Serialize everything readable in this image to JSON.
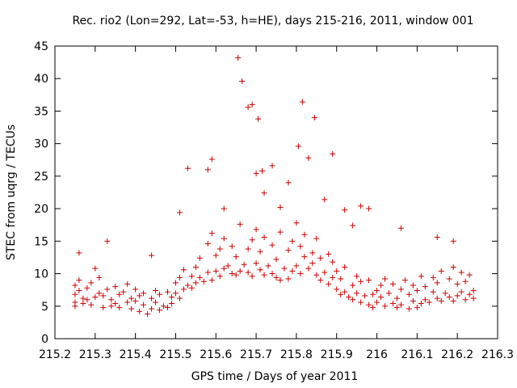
{
  "chart_data": {
    "type": "scatter",
    "title": "Rec. rio2 (Lon=292, Lat=-53, h=HE), days 215-216, 2011, window 001",
    "xlabel": "GPS time / Days of year 2011",
    "ylabel": "STEC from uqrg / TECUs",
    "xlim": [
      215.2,
      216.3
    ],
    "ylim": [
      0,
      45
    ],
    "xticks": [
      215.2,
      215.3,
      215.4,
      215.5,
      215.6,
      215.7,
      215.8,
      215.9,
      216.0,
      216.1,
      216.2,
      216.3
    ],
    "xtick_labels": [
      "215.2",
      "215.3",
      "215.4",
      "215.5",
      "215.6",
      "215.7",
      "215.8",
      "215.9",
      "216",
      "216.1",
      "216.2",
      "216.3"
    ],
    "yticks": [
      0,
      5,
      10,
      15,
      20,
      25,
      30,
      35,
      40,
      45
    ],
    "ytick_labels": [
      "0",
      "5",
      "10",
      "15",
      "20",
      "25",
      "30",
      "35",
      "40",
      "45"
    ],
    "grid": false,
    "marker": "+",
    "color": "#cc0000",
    "x": [
      215.25,
      215.25,
      215.25,
      215.25,
      215.26,
      215.26,
      215.27,
      215.27,
      215.28,
      215.28,
      215.29,
      215.29,
      215.3,
      215.3,
      215.31,
      215.31,
      215.32,
      215.32,
      215.33,
      215.34,
      215.34,
      215.35,
      215.35,
      215.36,
      215.36,
      215.37,
      215.38,
      215.38,
      215.39,
      215.39,
      215.4,
      215.4,
      215.41,
      215.41,
      215.42,
      215.42,
      215.43,
      215.44,
      215.44,
      215.45,
      215.45,
      215.46,
      215.46,
      215.47,
      215.48,
      215.48,
      215.49,
      215.49,
      215.5,
      215.5,
      215.51,
      215.51,
      215.52,
      215.52,
      215.53,
      215.54,
      215.54,
      215.55,
      215.55,
      215.56,
      215.56,
      215.57,
      215.58,
      215.58,
      215.59,
      215.59,
      215.6,
      215.6,
      215.61,
      215.61,
      215.62,
      215.62,
      215.63,
      215.64,
      215.64,
      215.65,
      215.65,
      215.66,
      215.66,
      215.67,
      215.68,
      215.68,
      215.69,
      215.69,
      215.7,
      215.7,
      215.71,
      215.71,
      215.72,
      215.72,
      215.73,
      215.74,
      215.74,
      215.75,
      215.75,
      215.76,
      215.76,
      215.77,
      215.78,
      215.78,
      215.79,
      215.79,
      215.8,
      215.8,
      215.81,
      215.81,
      215.82,
      215.82,
      215.83,
      215.84,
      215.84,
      215.85,
      215.85,
      215.86,
      215.86,
      215.87,
      215.88,
      215.88,
      215.89,
      215.89,
      215.9,
      215.9,
      215.91,
      215.91,
      215.92,
      215.92,
      215.93,
      215.94,
      215.94,
      215.95,
      215.95,
      215.96,
      215.96,
      215.97,
      215.98,
      215.98,
      215.99,
      215.99,
      216.0,
      216.0,
      216.01,
      216.01,
      216.02,
      216.02,
      216.03,
      216.04,
      216.04,
      216.05,
      216.05,
      216.06,
      216.06,
      216.07,
      216.08,
      216.08,
      216.09,
      216.09,
      216.1,
      216.1,
      216.11,
      216.11,
      216.12,
      216.12,
      216.13,
      216.14,
      216.14,
      216.15,
      216.15,
      216.16,
      216.16,
      216.17,
      216.18,
      216.18,
      216.19,
      216.19,
      216.2,
      216.2,
      216.21,
      216.21,
      216.22,
      216.22,
      216.23,
      216.23,
      216.24,
      216.24,
      215.26,
      215.33,
      215.44,
      215.51,
      215.53,
      215.58,
      215.59,
      215.62,
      215.655,
      215.665,
      215.68,
      215.69,
      215.7,
      215.705,
      215.715,
      215.72,
      215.74,
      215.76,
      215.78,
      215.805,
      215.815,
      215.83,
      215.845,
      215.87,
      215.89,
      215.92,
      215.94,
      215.96,
      215.98,
      216.06,
      216.15,
      216.19
    ],
    "y": [
      8.2,
      6.8,
      5.6,
      5.0,
      7.4,
      9.0,
      6.2,
      5.4,
      7.8,
      6.0,
      5.2,
      8.6,
      10.8,
      6.4,
      7.0,
      9.4,
      4.8,
      6.6,
      7.6,
      6.0,
      5.0,
      8.0,
      5.4,
      6.8,
      4.8,
      7.2,
      5.6,
      8.4,
      4.6,
      6.2,
      5.8,
      7.6,
      4.2,
      6.6,
      5.2,
      7.0,
      3.8,
      6.2,
      4.6,
      5.6,
      7.4,
      4.4,
      6.8,
      5.0,
      7.2,
      4.8,
      6.4,
      5.4,
      7.0,
      8.6,
      6.2,
      9.4,
      7.6,
      10.6,
      8.2,
      9.6,
      7.8,
      11.0,
      8.6,
      9.4,
      12.4,
      8.8,
      10.2,
      14.6,
      9.0,
      16.2,
      10.4,
      12.8,
      9.6,
      13.8,
      10.8,
      15.4,
      11.2,
      10.0,
      14.2,
      9.8,
      12.6,
      10.4,
      17.6,
      11.4,
      10.2,
      13.8,
      9.6,
      15.2,
      11.6,
      16.8,
      10.6,
      13.4,
      9.8,
      15.6,
      11.2,
      10.0,
      14.4,
      9.4,
      12.2,
      9.0,
      16.4,
      10.8,
      9.2,
      13.6,
      10.4,
      15.0,
      11.2,
      17.8,
      10.0,
      14.2,
      12.6,
      16.0,
      10.8,
      13.2,
      11.6,
      9.8,
      15.4,
      9.0,
      12.4,
      10.2,
      8.4,
      13.0,
      9.4,
      11.8,
      7.6,
      10.4,
      6.8,
      9.2,
      7.2,
      11.0,
      6.4,
      8.2,
      6.0,
      9.6,
      7.0,
      5.6,
      8.8,
      6.6,
      5.2,
      9.0,
      6.8,
      4.8,
      7.4,
      5.6,
      8.2,
      6.4,
      5.0,
      9.2,
      7.0,
      5.4,
      8.4,
      6.2,
      4.8,
      7.6,
      5.2,
      9.0,
      4.6,
      6.8,
      5.8,
      8.2,
      4.8,
      7.4,
      5.4,
      9.6,
      6.0,
      8.0,
      5.6,
      7.2,
      9.4,
      6.2,
      8.6,
      5.8,
      10.4,
      7.0,
      6.4,
      9.2,
      5.8,
      11.0,
      6.6,
      8.4,
      7.2,
      10.2,
      6.0,
      8.8,
      6.8,
      9.8,
      7.4,
      6.2,
      13.2,
      15.0,
      12.8,
      19.4,
      26.2,
      26.0,
      27.6,
      20.0,
      43.2,
      39.6,
      35.6,
      36.0,
      25.4,
      33.8,
      25.8,
      22.4,
      26.6,
      20.2,
      24.0,
      29.6,
      36.4,
      27.8,
      34.0,
      21.4,
      28.4,
      19.8,
      17.4,
      20.4,
      20.0,
      17.0,
      15.6,
      15.0
    ]
  }
}
